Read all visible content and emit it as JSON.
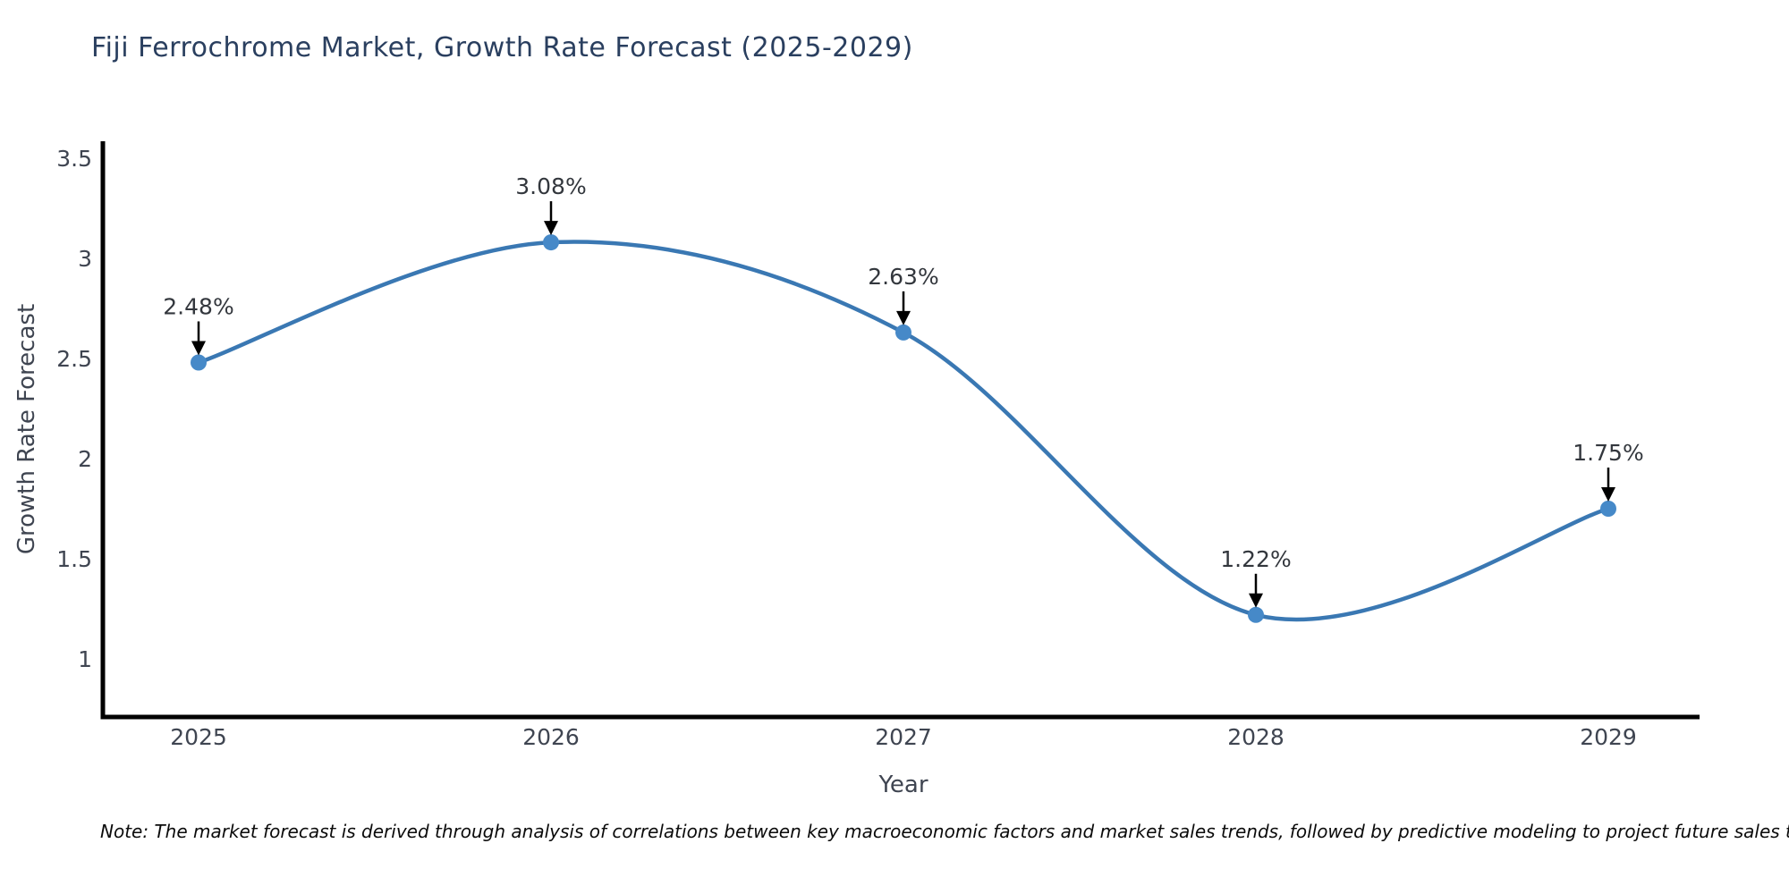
{
  "title": "Fiji Ferrochrome Market, Growth Rate Forecast (2025-2029)",
  "note": "Note: The market forecast is derived through analysis of correlations between key macroeconomic factors and market sales trends, followed by predictive modeling to project future sales trends.",
  "chart_data": {
    "type": "line",
    "title": "Fiji Ferrochrome Market, Growth Rate Forecast (2025-2029)",
    "categories": [
      "2025",
      "2026",
      "2027",
      "2028",
      "2029"
    ],
    "values": [
      2.48,
      3.08,
      2.63,
      1.22,
      1.75
    ],
    "point_labels": [
      "2.48%",
      "3.08%",
      "2.63%",
      "1.22%",
      "1.75%"
    ],
    "xlabel": "Year",
    "ylabel": "Growth Rate Forecast",
    "ylim": [
      0.71,
      3.585
    ],
    "yticks": [
      1,
      1.5,
      2,
      2.5,
      3,
      3.5
    ],
    "line_shape": "spline",
    "markers": true,
    "grid": false,
    "legend_position": "none",
    "colors": {
      "line": "#3a78b3",
      "marker": "#4689c8",
      "axis": "#000000",
      "annotation": "#33373d",
      "arrow": "#000000",
      "tick_text": "#3f4551",
      "title_text": "#2a3f5f"
    }
  }
}
